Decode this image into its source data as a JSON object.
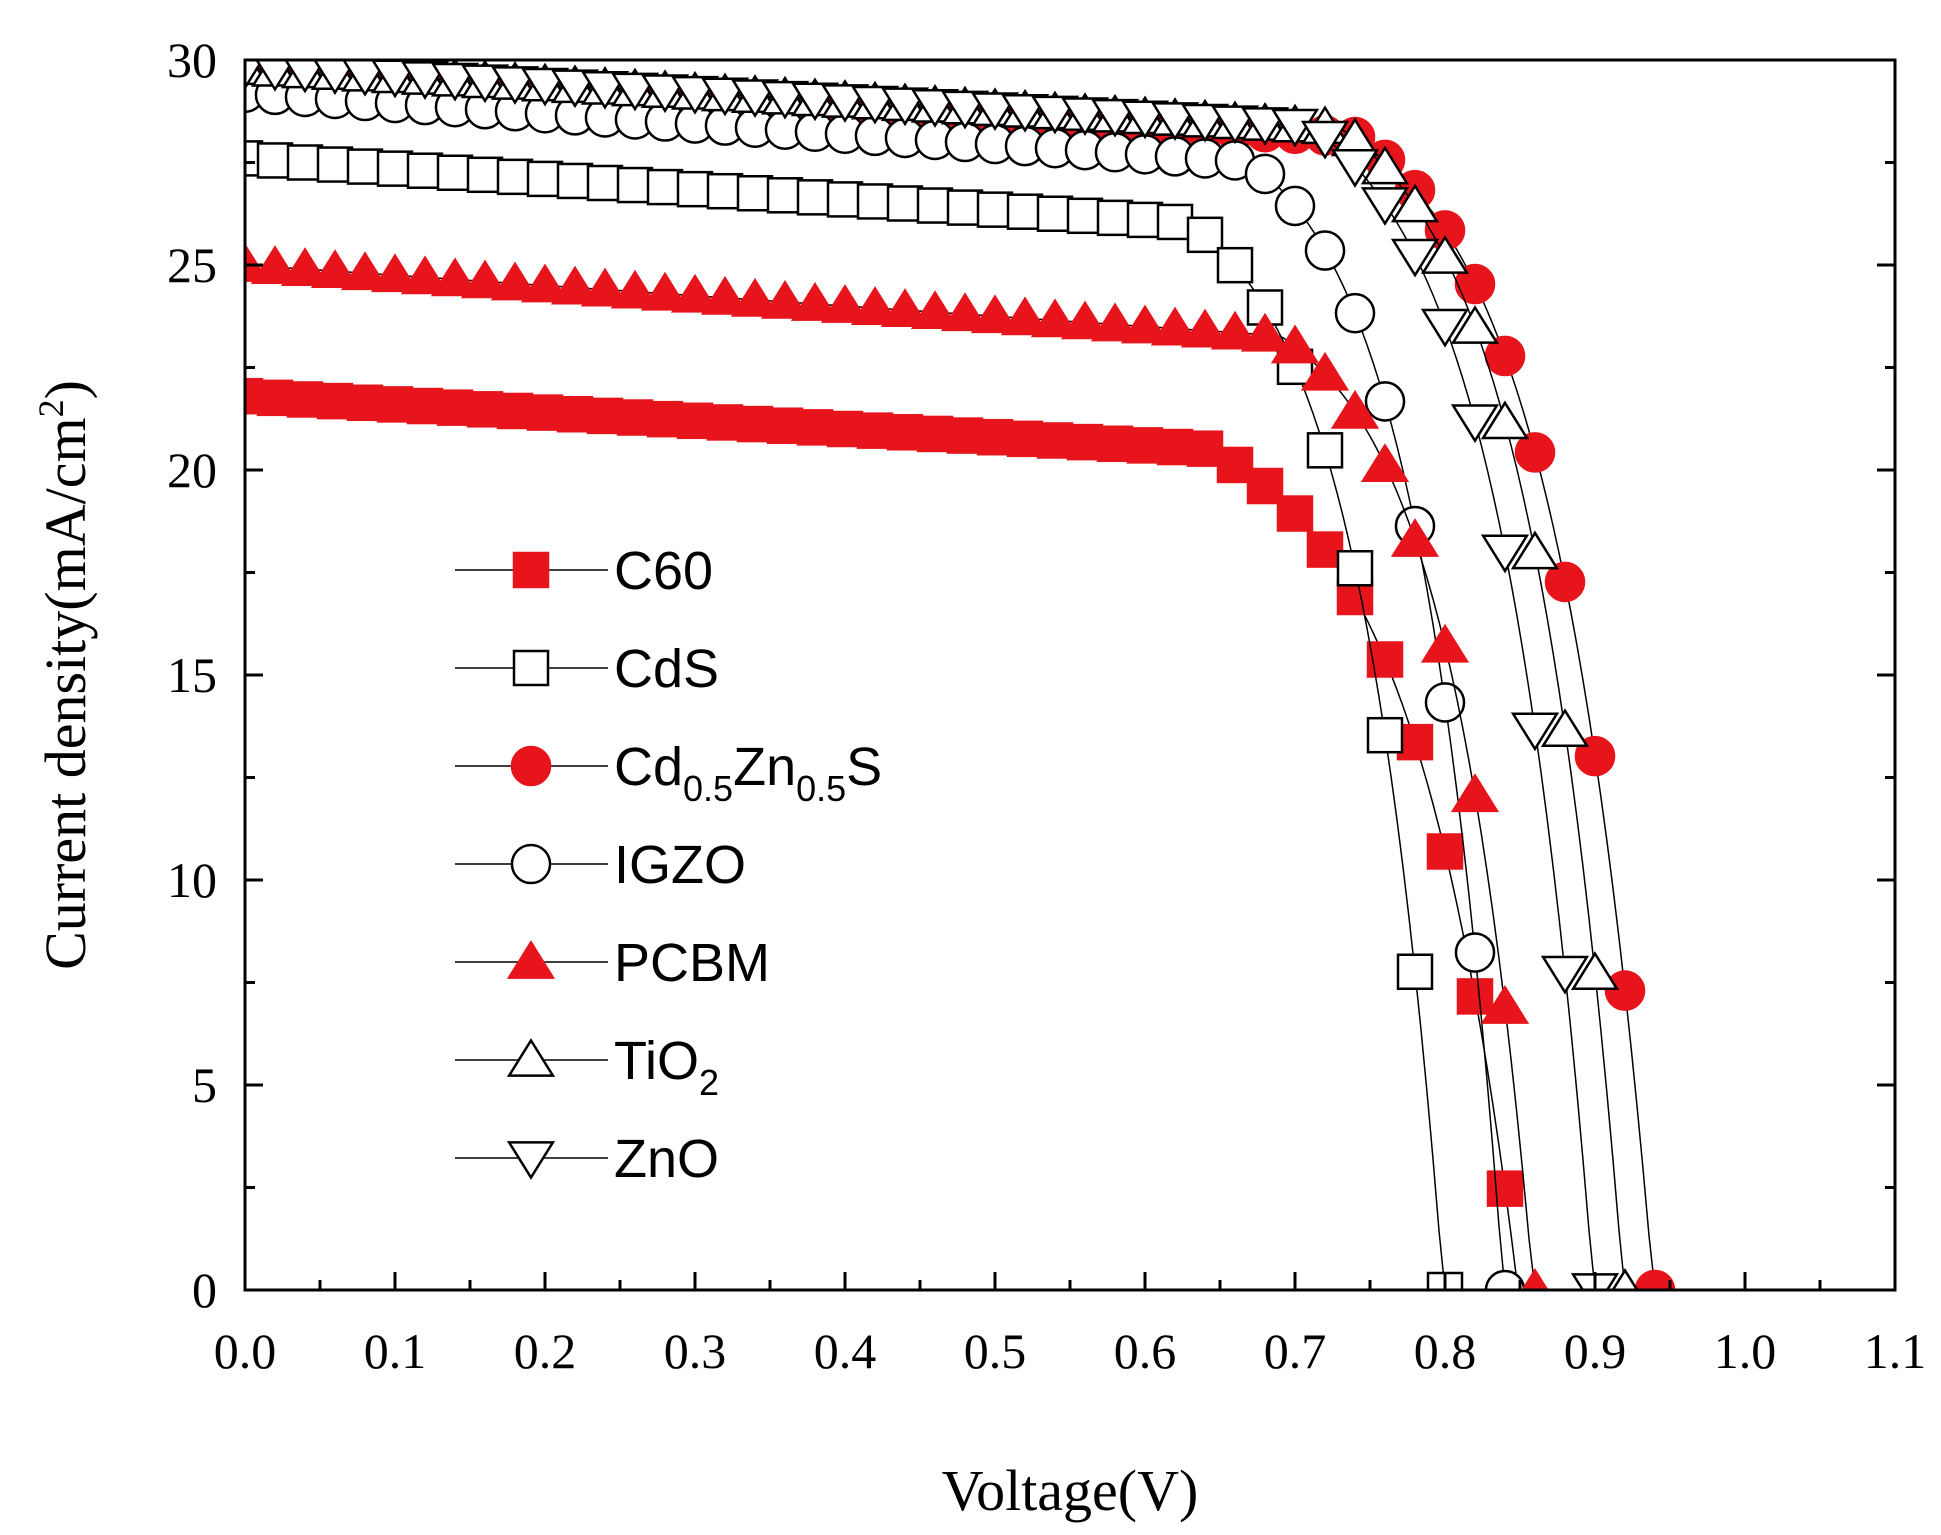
{
  "chart_data": {
    "type": "line",
    "title": "",
    "xlabel": "Voltage(V)",
    "ylabel": "Current density(mA/cm",
    "ylabel_sup": "2",
    "ylabel_end": ")",
    "xlim": [
      0.0,
      1.1
    ],
    "ylim": [
      0,
      30
    ],
    "x_ticks": [
      "0.0",
      "0.1",
      "0.2",
      "0.3",
      "0.4",
      "0.5",
      "0.6",
      "0.7",
      "0.8",
      "0.9",
      "1.0",
      "1.1"
    ],
    "y_ticks": [
      "0",
      "5",
      "10",
      "15",
      "20",
      "25",
      "30"
    ],
    "legend_position": "center-left",
    "series": [
      {
        "name": "C60",
        "label_main": "C60",
        "label_sub1": "",
        "label_mid": "",
        "label_sub2": "",
        "label_end": "",
        "marker": "square",
        "fill": "#e8141c",
        "stroke": "#e8141c",
        "jsc": 21.8,
        "voc": 0.85,
        "vknee": 0.64,
        "slope": 2.0
      },
      {
        "name": "CdS",
        "label_main": "CdS",
        "label_sub1": "",
        "label_mid": "",
        "label_sub2": "",
        "label_end": "",
        "marker": "square",
        "fill": "#ffffff",
        "stroke": "#000000",
        "jsc": 27.6,
        "voc": 0.8,
        "vknee": 0.63,
        "slope": 2.5
      },
      {
        "name": "Cd0.5Zn0.5S",
        "label_main": "Cd",
        "label_sub1": "0.5",
        "label_mid": "Zn",
        "label_sub2": "0.5",
        "label_end": "S",
        "marker": "circle",
        "fill": "#e8141c",
        "stroke": "#e8141c",
        "jsc": 29.6,
        "voc": 0.94,
        "vknee": 0.74,
        "slope": 2.0
      },
      {
        "name": "IGZO",
        "label_main": "IGZO",
        "label_sub1": "",
        "label_mid": "",
        "label_sub2": "",
        "label_end": "",
        "marker": "circle",
        "fill": "#ffffff",
        "stroke": "#000000",
        "jsc": 29.2,
        "voc": 0.84,
        "vknee": 0.67,
        "slope": 2.5
      },
      {
        "name": "PCBM",
        "label_main": "PCBM",
        "label_sub1": "",
        "label_mid": "",
        "label_sub2": "",
        "label_end": "",
        "marker": "triangle-up",
        "fill": "#e8141c",
        "stroke": "#e8141c",
        "jsc": 25.0,
        "voc": 0.86,
        "vknee": 0.69,
        "slope": 2.5
      },
      {
        "name": "TiO2",
        "label_main": "TiO",
        "label_sub1": "2",
        "label_mid": "",
        "label_sub2": "",
        "label_end": "",
        "marker": "triangle-up",
        "fill": "#ffffff",
        "stroke": "#000000",
        "jsc": 29.8,
        "voc": 0.92,
        "vknee": 0.73,
        "slope": 2.0
      },
      {
        "name": "ZnO",
        "label_main": "ZnO",
        "label_sub1": "",
        "label_mid": "",
        "label_sub2": "",
        "label_end": "",
        "marker": "triangle-down",
        "fill": "#ffffff",
        "stroke": "#000000",
        "jsc": 29.8,
        "voc": 0.9,
        "vknee": 0.71,
        "slope": 2.0
      }
    ]
  }
}
